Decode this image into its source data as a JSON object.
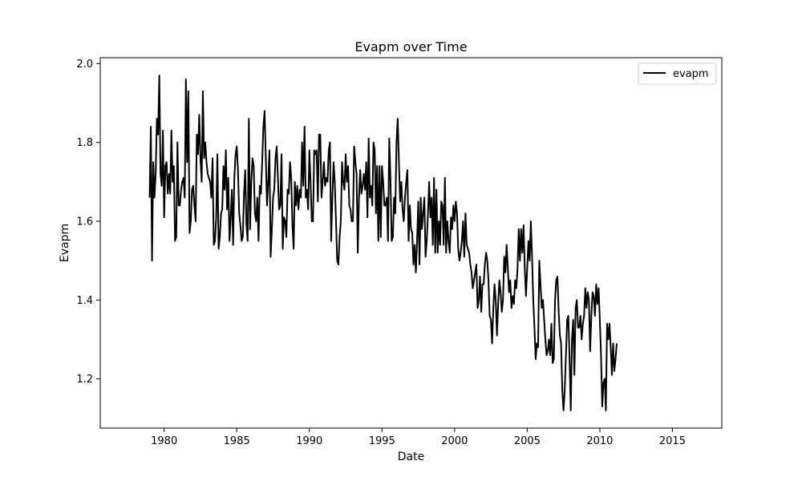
{
  "chart_data": {
    "type": "line",
    "title": "Evapm over Time",
    "xlabel": "Date",
    "ylabel": "Evapm",
    "xlim": [
      1975.6,
      2018.4
    ],
    "ylim": [
      1.075,
      2.015
    ],
    "x_ticks": [
      1980,
      1985,
      1990,
      1995,
      2000,
      2005,
      2010,
      2015
    ],
    "x_tick_labels": [
      "1980",
      "1985",
      "1990",
      "1995",
      "2000",
      "2005",
      "2010",
      "2015"
    ],
    "y_ticks": [
      1.2,
      1.4,
      1.6,
      1.8,
      2.0
    ],
    "y_tick_labels": [
      "1.2",
      "1.4",
      "1.6",
      "1.8",
      "2.0"
    ],
    "grid": false,
    "legend_position": "top-right",
    "series": [
      {
        "name": "evapm",
        "color": "#000000",
        "x_start": 1979.0,
        "x_step": 0.0833333,
        "values": [
          1.66,
          1.84,
          1.5,
          1.75,
          1.66,
          1.72,
          1.86,
          1.82,
          1.97,
          1.72,
          1.69,
          1.83,
          1.61,
          1.74,
          1.75,
          1.67,
          1.72,
          1.67,
          1.83,
          1.7,
          1.74,
          1.55,
          1.56,
          1.8,
          1.64,
          1.64,
          1.68,
          1.7,
          1.71,
          1.66,
          1.96,
          1.75,
          1.93,
          1.57,
          1.6,
          1.68,
          1.69,
          1.64,
          1.6,
          1.82,
          1.77,
          1.87,
          1.76,
          1.7,
          1.93,
          1.76,
          1.8,
          1.75,
          1.72,
          1.71,
          1.7,
          1.66,
          1.76,
          1.54,
          1.55,
          1.61,
          1.77,
          1.53,
          1.56,
          1.62,
          1.63,
          1.74,
          1.68,
          1.78,
          1.63,
          1.71,
          1.55,
          1.61,
          1.68,
          1.54,
          1.71,
          1.77,
          1.79,
          1.73,
          1.62,
          1.59,
          1.55,
          1.56,
          1.67,
          1.73,
          1.59,
          1.55,
          1.86,
          1.58,
          1.7,
          1.76,
          1.74,
          1.62,
          1.6,
          1.66,
          1.55,
          1.69,
          1.67,
          1.75,
          1.84,
          1.88,
          1.76,
          1.64,
          1.7,
          1.78,
          1.51,
          1.58,
          1.66,
          1.68,
          1.76,
          1.79,
          1.71,
          1.63,
          1.64,
          1.77,
          1.53,
          1.61,
          1.6,
          1.56,
          1.68,
          1.67,
          1.75,
          1.71,
          1.59,
          1.53,
          1.7,
          1.64,
          1.69,
          1.63,
          1.68,
          1.66,
          1.8,
          1.69,
          1.84,
          1.66,
          1.68,
          1.63,
          1.78,
          1.7,
          1.6,
          1.6,
          1.78,
          1.77,
          1.78,
          1.65,
          1.82,
          1.82,
          1.66,
          1.7,
          1.75,
          1.69,
          1.71,
          1.7,
          1.78,
          1.8,
          1.55,
          1.66,
          1.75,
          1.7,
          1.6,
          1.5,
          1.49,
          1.56,
          1.6,
          1.75,
          1.7,
          1.68,
          1.77,
          1.7,
          1.74,
          1.64,
          1.63,
          1.6,
          1.6,
          1.79,
          1.75,
          1.72,
          1.52,
          1.66,
          1.73,
          1.67,
          1.69,
          1.72,
          1.68,
          1.75,
          1.61,
          1.81,
          1.66,
          1.69,
          1.64,
          1.8,
          1.78,
          1.62,
          1.74,
          1.55,
          1.74,
          1.56,
          1.74,
          1.7,
          1.64,
          1.64,
          1.66,
          1.55,
          1.81,
          1.71,
          1.55,
          1.56,
          1.66,
          1.62,
          1.8,
          1.86,
          1.75,
          1.65,
          1.7,
          1.63,
          1.6,
          1.66,
          1.7,
          1.73,
          1.55,
          1.64,
          1.58,
          1.57,
          1.49,
          1.54,
          1.47,
          1.55,
          1.65,
          1.49,
          1.66,
          1.58,
          1.62,
          1.66,
          1.51,
          1.55,
          1.62,
          1.7,
          1.61,
          1.66,
          1.54,
          1.71,
          1.52,
          1.68,
          1.52,
          1.6,
          1.54,
          1.65,
          1.64,
          1.54,
          1.71,
          1.52,
          1.6,
          1.55,
          1.52,
          1.61,
          1.58,
          1.64,
          1.6,
          1.65,
          1.62,
          1.53,
          1.5,
          1.52,
          1.55,
          1.6,
          1.51,
          1.62,
          1.54,
          1.53,
          1.52,
          1.49,
          1.47,
          1.43,
          1.45,
          1.47,
          1.49,
          1.38,
          1.4,
          1.46,
          1.37,
          1.44,
          1.44,
          1.49,
          1.52,
          1.5,
          1.45,
          1.36,
          1.35,
          1.29,
          1.38,
          1.44,
          1.4,
          1.31,
          1.39,
          1.45,
          1.42,
          1.37,
          1.4,
          1.51,
          1.47,
          1.54,
          1.48,
          1.42,
          1.45,
          1.38,
          1.41,
          1.39,
          1.45,
          1.43,
          1.48,
          1.58,
          1.5,
          1.58,
          1.52,
          1.59,
          1.48,
          1.41,
          1.48,
          1.55,
          1.5,
          1.6,
          1.51,
          1.4,
          1.33,
          1.25,
          1.29,
          1.28,
          1.5,
          1.44,
          1.38,
          1.4,
          1.35,
          1.3,
          1.26,
          1.27,
          1.3,
          1.26,
          1.34,
          1.24,
          1.25,
          1.4,
          1.45,
          1.46,
          1.37,
          1.31,
          1.29,
          1.17,
          1.12,
          1.17,
          1.26,
          1.35,
          1.36,
          1.25,
          1.12,
          1.3,
          1.35,
          1.21,
          1.38,
          1.4,
          1.33,
          1.33,
          1.36,
          1.3,
          1.34,
          1.36,
          1.43,
          1.38,
          1.42,
          1.4,
          1.27,
          1.36,
          1.42,
          1.41,
          1.36,
          1.44,
          1.39,
          1.43,
          1.35,
          1.26,
          1.13,
          1.19,
          1.2,
          1.12,
          1.34,
          1.3,
          1.34,
          1.28,
          1.21,
          1.29,
          1.22,
          1.25,
          1.29
        ]
      }
    ]
  }
}
